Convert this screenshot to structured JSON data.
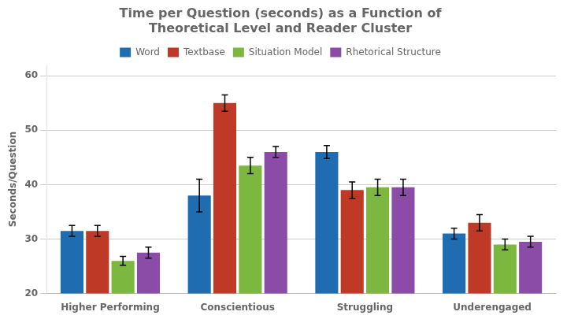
{
  "chart_data": {
    "type": "bar",
    "title": "Time per Question (seconds) as a Function of\nTheoretical Level and Reader Cluster",
    "ylabel": "Seconds/Question",
    "categories": [
      "Higher Performing",
      "Conscientious",
      "Struggling",
      "Underengaged"
    ],
    "series": [
      {
        "name": "Word",
        "color": "#1F6CB0",
        "values": [
          31.5,
          38.0,
          46.0,
          31.0
        ],
        "errors": [
          1.0,
          3.0,
          1.2,
          1.0
        ]
      },
      {
        "name": "Textbase",
        "color": "#BE3A26",
        "values": [
          31.5,
          55.0,
          39.0,
          33.0
        ],
        "errors": [
          1.0,
          1.5,
          1.5,
          1.5
        ]
      },
      {
        "name": "Situation Model",
        "color": "#7CB740",
        "values": [
          26.0,
          43.5,
          39.5,
          29.0
        ],
        "errors": [
          0.8,
          1.5,
          1.5,
          1.0
        ]
      },
      {
        "name": "Rhetorical Structure",
        "color": "#8B4CA8",
        "values": [
          27.5,
          46.0,
          39.5,
          29.5
        ],
        "errors": [
          1.0,
          1.0,
          1.5,
          1.0
        ]
      }
    ],
    "ylim": [
      20,
      62
    ],
    "yticks": [
      20,
      30,
      40,
      50,
      60
    ],
    "grid": true,
    "legend": "top"
  }
}
